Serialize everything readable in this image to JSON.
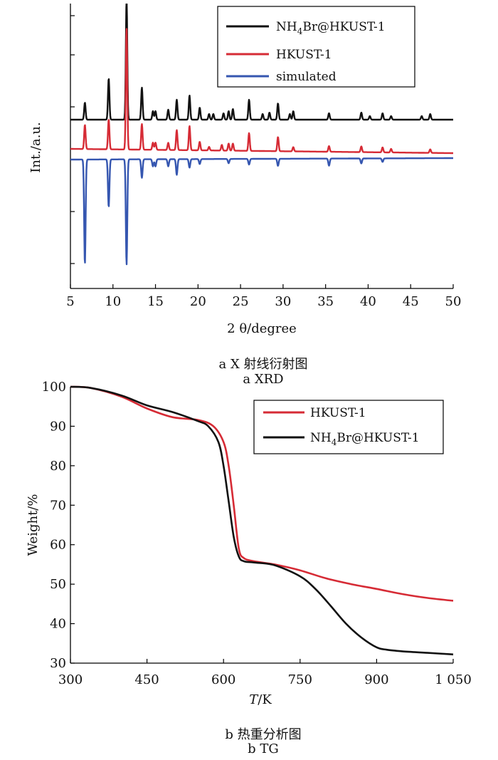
{
  "chart_data": [
    {
      "type": "line",
      "title": "",
      "xlabel": "2 θ/degree",
      "ylabel": "Int./a.u.",
      "xlim": [
        5,
        50
      ],
      "x_ticks": [
        5,
        10,
        15,
        20,
        25,
        30,
        35,
        40,
        45,
        50
      ],
      "y_ticks_labeled": false,
      "grid": false,
      "legend_position": "top-right",
      "series": [
        {
          "name": "NH4Br@HKUST-1",
          "color": "#111111",
          "peaks": [
            {
              "x": 6.7,
              "h": 24
            },
            {
              "x": 9.5,
              "h": 58
            },
            {
              "x": 11.6,
              "h": 170
            },
            {
              "x": 13.4,
              "h": 45
            },
            {
              "x": 14.7,
              "h": 12
            },
            {
              "x": 15.0,
              "h": 12
            },
            {
              "x": 16.5,
              "h": 14
            },
            {
              "x": 17.5,
              "h": 28
            },
            {
              "x": 19.0,
              "h": 34
            },
            {
              "x": 20.2,
              "h": 17
            },
            {
              "x": 21.3,
              "h": 8
            },
            {
              "x": 21.8,
              "h": 8
            },
            {
              "x": 23.0,
              "h": 9
            },
            {
              "x": 23.6,
              "h": 12
            },
            {
              "x": 24.1,
              "h": 15
            },
            {
              "x": 26.0,
              "h": 28
            },
            {
              "x": 27.6,
              "h": 8
            },
            {
              "x": 28.4,
              "h": 10
            },
            {
              "x": 29.4,
              "h": 23
            },
            {
              "x": 30.8,
              "h": 8
            },
            {
              "x": 31.2,
              "h": 12
            },
            {
              "x": 35.4,
              "h": 9
            },
            {
              "x": 39.2,
              "h": 10
            },
            {
              "x": 40.2,
              "h": 5
            },
            {
              "x": 41.7,
              "h": 9
            },
            {
              "x": 42.7,
              "h": 5
            },
            {
              "x": 46.3,
              "h": 5
            },
            {
              "x": 47.3,
              "h": 8
            }
          ]
        },
        {
          "name": "HKUST-1",
          "color": "#d62b35",
          "peaks": [
            {
              "x": 6.7,
              "h": 34
            },
            {
              "x": 9.5,
              "h": 42
            },
            {
              "x": 11.6,
              "h": 170
            },
            {
              "x": 13.4,
              "h": 36
            },
            {
              "x": 14.7,
              "h": 10
            },
            {
              "x": 15.0,
              "h": 10
            },
            {
              "x": 16.5,
              "h": 10
            },
            {
              "x": 17.5,
              "h": 28
            },
            {
              "x": 19.0,
              "h": 34
            },
            {
              "x": 20.2,
              "h": 12
            },
            {
              "x": 21.3,
              "h": 5
            },
            {
              "x": 22.8,
              "h": 8
            },
            {
              "x": 23.6,
              "h": 10
            },
            {
              "x": 24.1,
              "h": 10
            },
            {
              "x": 26.0,
              "h": 25
            },
            {
              "x": 29.4,
              "h": 20
            },
            {
              "x": 31.2,
              "h": 6
            },
            {
              "x": 35.4,
              "h": 8
            },
            {
              "x": 39.2,
              "h": 8
            },
            {
              "x": 41.7,
              "h": 7
            },
            {
              "x": 42.7,
              "h": 5
            },
            {
              "x": 47.3,
              "h": 5
            }
          ]
        },
        {
          "name": "simulated",
          "color": "#3556b0",
          "peaks": [
            {
              "x": 6.7,
              "h": 147
            },
            {
              "x": 9.5,
              "h": 67
            },
            {
              "x": 11.6,
              "h": 148
            },
            {
              "x": 13.4,
              "h": 26
            },
            {
              "x": 14.7,
              "h": 10
            },
            {
              "x": 15.0,
              "h": 10
            },
            {
              "x": 16.5,
              "h": 10
            },
            {
              "x": 17.5,
              "h": 22
            },
            {
              "x": 19.0,
              "h": 12
            },
            {
              "x": 20.2,
              "h": 7
            },
            {
              "x": 23.6,
              "h": 6
            },
            {
              "x": 26.0,
              "h": 8
            },
            {
              "x": 29.4,
              "h": 10
            },
            {
              "x": 35.4,
              "h": 10
            },
            {
              "x": 39.2,
              "h": 7
            },
            {
              "x": 41.7,
              "h": 5
            }
          ]
        }
      ]
    },
    {
      "type": "line",
      "title": "",
      "xlabel": "T/K",
      "ylabel": "Weight/%",
      "xlim": [
        300,
        1050
      ],
      "ylim": [
        30,
        100
      ],
      "x_ticks": [
        300,
        450,
        600,
        750,
        900,
        1050
      ],
      "x_tick_labels": [
        "300",
        "450",
        "600",
        "750",
        "900",
        "1 050"
      ],
      "y_ticks": [
        30,
        40,
        50,
        60,
        70,
        80,
        90,
        100
      ],
      "grid": false,
      "legend_position": "top-right",
      "series": [
        {
          "name": "HKUST-1",
          "color": "#d62b35",
          "x": [
            300,
            340,
            400,
            450,
            500,
            550,
            580,
            600,
            610,
            620,
            630,
            640,
            660,
            700,
            750,
            800,
            850,
            900,
            950,
            1000,
            1050
          ],
          "y": [
            100,
            99.7,
            97.5,
            94.5,
            92.3,
            91.6,
            90.0,
            86.0,
            80.0,
            70.0,
            59.0,
            56.6,
            55.8,
            55.0,
            53.5,
            51.5,
            50.0,
            48.8,
            47.5,
            46.5,
            45.8
          ]
        },
        {
          "name": "NH4Br@HKUST-1",
          "color": "#111111",
          "x": [
            300,
            340,
            400,
            450,
            500,
            550,
            570,
            590,
            600,
            610,
            620,
            630,
            640,
            660,
            700,
            750,
            780,
            810,
            840,
            870,
            900,
            920,
            950,
            1000,
            1050
          ],
          "y": [
            100,
            99.7,
            97.8,
            95.3,
            93.6,
            91.3,
            90.0,
            86.0,
            80.0,
            71.0,
            62.0,
            57.0,
            55.8,
            55.5,
            54.8,
            52.0,
            48.8,
            44.5,
            40.0,
            36.5,
            34.0,
            33.4,
            33.0,
            32.6,
            32.2
          ]
        }
      ]
    }
  ],
  "captions": {
    "a_cn": "a  X 射线衍射图",
    "a_en": "a  XRD",
    "b_cn": "b  热重分析图",
    "b_en": "b  TG"
  }
}
